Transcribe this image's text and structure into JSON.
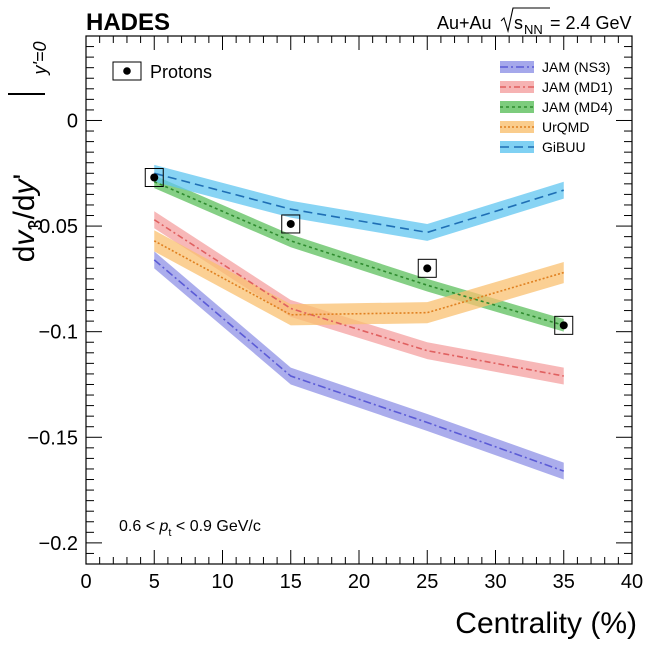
{
  "chart_data": {
    "type": "line",
    "experiment": "HADES",
    "system": {
      "text": "Au+Au",
      "sqrt_label": "s",
      "sub": "NN",
      "value_text": "= 2.4 GeV"
    },
    "ylabel": {
      "d": "d",
      "v": "v",
      "three": "3",
      "slash_d": "/d",
      "y": "y",
      "prime": "'",
      "sub": "y'=0"
    },
    "xlabel": "Centrality (%)",
    "xlim": [
      0,
      40
    ],
    "ylim": [
      -0.21,
      0.04
    ],
    "xticks": [
      0,
      5,
      10,
      15,
      20,
      25,
      30,
      35,
      40
    ],
    "xtick_labels": [
      "0",
      "5",
      "10",
      "15",
      "20",
      "25",
      "30",
      "35",
      "40"
    ],
    "yticks": [
      0,
      -0.05,
      -0.1,
      -0.15,
      -0.2
    ],
    "ytick_labels": [
      "0",
      "−0.05",
      "−0.1",
      "−0.15",
      "−0.2"
    ],
    "annotation": {
      "prefix": "0.6 < ",
      "p": "p",
      "sub": "t",
      "suffix": " < 0.9 GeV/c"
    },
    "data_series": {
      "name": "Protons",
      "x": [
        5,
        15,
        25,
        35
      ],
      "y": [
        -0.027,
        -0.049,
        -0.07,
        -0.097
      ]
    },
    "model_series": [
      {
        "name": "JAM (NS3)",
        "color": "#5b5bd6",
        "band": "#8f92e6",
        "dash": "8,3,2,3",
        "x": [
          5,
          15,
          25,
          35
        ],
        "y": [
          -0.066,
          -0.121,
          -0.143,
          -0.166
        ],
        "width": 0.004
      },
      {
        "name": "JAM (MD1)",
        "color": "#e06060",
        "band": "#f4a0a0",
        "dash": "6,3,2,3",
        "x": [
          5,
          15,
          25,
          35
        ],
        "y": [
          -0.047,
          -0.089,
          -0.109,
          -0.121
        ],
        "width": 0.004
      },
      {
        "name": "JAM (MD4)",
        "color": "#2e8b2e",
        "band": "#5cbf5c",
        "dash": "3,3",
        "x": [
          5,
          15,
          25,
          35
        ],
        "y": [
          -0.029,
          -0.057,
          -0.078,
          -0.097
        ],
        "width": 0.003
      },
      {
        "name": "UrQMD",
        "color": "#e08020",
        "band": "#f9c070",
        "dash": "2,2",
        "x": [
          5,
          15,
          25,
          35
        ],
        "y": [
          -0.057,
          -0.092,
          -0.091,
          -0.072
        ],
        "width": 0.005
      },
      {
        "name": "GiBUU",
        "color": "#1f6fb5",
        "band": "#60c5f0",
        "dash": "9,5",
        "x": [
          5,
          15,
          25,
          35
        ],
        "y": [
          -0.025,
          -0.042,
          -0.053,
          -0.033
        ],
        "width": 0.004
      }
    ]
  }
}
